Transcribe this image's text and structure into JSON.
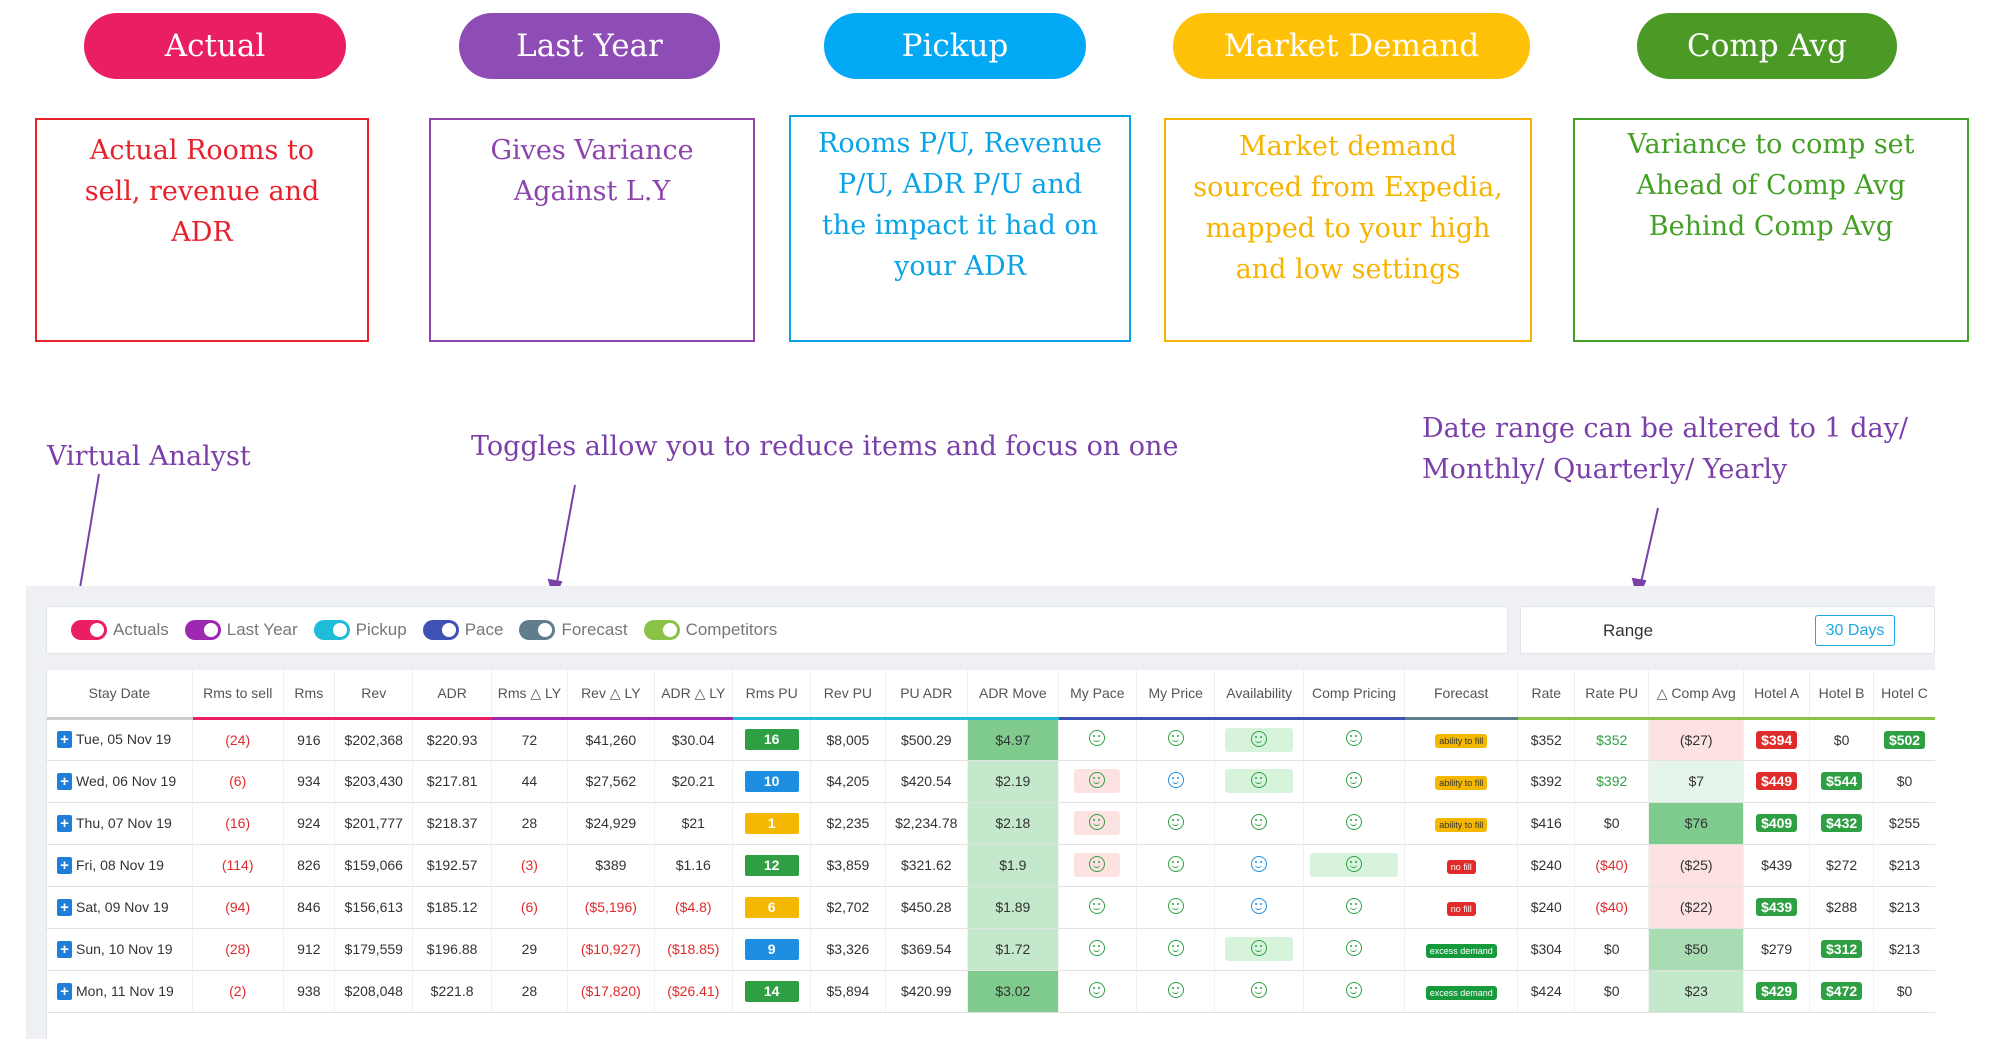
{
  "legend": [
    {
      "label": "Actual",
      "color": "#e91e63"
    },
    {
      "label": "Last Year",
      "color": "#8e44ad"
    },
    {
      "label": "Pickup",
      "color": "#03a9f4"
    },
    {
      "label": "Market Demand",
      "color": "#ffc107"
    },
    {
      "label": "Comp Avg",
      "color": "#43a024"
    }
  ],
  "boxes": [
    {
      "text": "Actual Rooms to\nsell, revenue and\nADR",
      "color": "#e8202c"
    },
    {
      "text": "Gives Variance\nAgainst L.Y",
      "color": "#8e44ad"
    },
    {
      "text": "Rooms P/U, Revenue\nP/U, ADR P/U and\nthe impact it had on\nyour ADR",
      "color": "#0aa3e5"
    },
    {
      "text": "Market demand\nsourced from Expedia,\nmapped to your high\nand low settings",
      "color": "#f6b400"
    },
    {
      "text": "Variance to comp set\nAhead of Comp Avg\nBehind Comp Avg",
      "color": "#43a024"
    }
  ],
  "notes": {
    "virtual_analyst": "Virtual Analyst",
    "toggles": "Toggles allow you to reduce items and focus on one",
    "date_range": "Date range can be altered to 1 day/\nMonthly/ Quarterly/ Yearly"
  },
  "toggles": [
    {
      "label": "Actuals",
      "color": "#e91e63"
    },
    {
      "label": "Last Year",
      "color": "#9c27b0"
    },
    {
      "label": "Pickup",
      "color": "#1ebcd8"
    },
    {
      "label": "Pace",
      "color": "#3f51b5"
    },
    {
      "label": "Forecast",
      "color": "#607d8b"
    },
    {
      "label": "Competitors",
      "color": "#8bc34a"
    }
  ],
  "range": {
    "label": "Range",
    "button": "30 Days"
  },
  "columns": [
    "Stay Date",
    "Rms to sell",
    "Rms",
    "Rev",
    "ADR",
    "Rms △ LY",
    "Rev △ LY",
    "ADR △ LY",
    "Rms PU",
    "Rev PU",
    "PU ADR",
    "ADR Move",
    "My Pace",
    "My Price",
    "Availability",
    "Comp Pricing",
    "Forecast",
    "Rate",
    "Rate PU",
    "△ Comp Avg",
    "Hotel A",
    "Hotel B",
    "Hotel C"
  ],
  "rows": [
    {
      "date": "Tue, 05 Nov 19",
      "to_sell": "(24)",
      "rms": "916",
      "rev": "$202,368",
      "adr": "$220.93",
      "rms_ly": "72",
      "rev_ly": "$41,260",
      "adr_ly": "$30.04",
      "rms_pu": "16",
      "rev_pu": "$8,005",
      "pu_adr": "$500.29",
      "adr_move": "$4.97",
      "forecast": "ability to fill",
      "rate": "$352",
      "rate_pu": "$352",
      "comp": "($27)",
      "a": "$394",
      "b": "$0",
      "c": "$502"
    },
    {
      "date": "Wed, 06 Nov 19",
      "to_sell": "(6)",
      "rms": "934",
      "rev": "$203,430",
      "adr": "$217.81",
      "rms_ly": "44",
      "rev_ly": "$27,562",
      "adr_ly": "$20.21",
      "rms_pu": "10",
      "rev_pu": "$4,205",
      "pu_adr": "$420.54",
      "adr_move": "$2.19",
      "forecast": "ability to fill",
      "rate": "$392",
      "rate_pu": "$392",
      "comp": "$7",
      "a": "$449",
      "b": "$544",
      "c": "$0"
    },
    {
      "date": "Thu, 07 Nov 19",
      "to_sell": "(16)",
      "rms": "924",
      "rev": "$201,777",
      "adr": "$218.37",
      "rms_ly": "28",
      "rev_ly": "$24,929",
      "adr_ly": "$21",
      "rms_pu": "1",
      "rev_pu": "$2,235",
      "pu_adr": "$2,234.78",
      "adr_move": "$2.18",
      "forecast": "ability to fill",
      "rate": "$416",
      "rate_pu": "$0",
      "comp": "$76",
      "a": "$409",
      "b": "$432",
      "c": "$255"
    },
    {
      "date": "Fri, 08 Nov 19",
      "to_sell": "(114)",
      "rms": "826",
      "rev": "$159,066",
      "adr": "$192.57",
      "rms_ly": "(3)",
      "rev_ly": "$389",
      "adr_ly": "$1.16",
      "rms_pu": "12",
      "rev_pu": "$3,859",
      "pu_adr": "$321.62",
      "adr_move": "$1.9",
      "forecast": "no fill",
      "rate": "$240",
      "rate_pu": "($40)",
      "comp": "($25)",
      "a": "$439",
      "b": "$272",
      "c": "$213"
    },
    {
      "date": "Sat, 09 Nov 19",
      "to_sell": "(94)",
      "rms": "846",
      "rev": "$156,613",
      "adr": "$185.12",
      "rms_ly": "(6)",
      "rev_ly": "($5,196)",
      "adr_ly": "($4.8)",
      "rms_pu": "6",
      "rev_pu": "$2,702",
      "pu_adr": "$450.28",
      "adr_move": "$1.89",
      "forecast": "no fill",
      "rate": "$240",
      "rate_pu": "($40)",
      "comp": "($22)",
      "a": "$439",
      "b": "$288",
      "c": "$213"
    },
    {
      "date": "Sun, 10 Nov 19",
      "to_sell": "(28)",
      "rms": "912",
      "rev": "$179,559",
      "adr": "$196.88",
      "rms_ly": "29",
      "rev_ly": "($10,927)",
      "adr_ly": "($18.85)",
      "rms_pu": "9",
      "rev_pu": "$3,326",
      "pu_adr": "$369.54",
      "adr_move": "$1.72",
      "forecast": "excess demand",
      "rate": "$304",
      "rate_pu": "$0",
      "comp": "$50",
      "a": "$279",
      "b": "$312",
      "c": "$213"
    },
    {
      "date": "Mon, 11 Nov 19",
      "to_sell": "(2)",
      "rms": "938",
      "rev": "$208,048",
      "adr": "$221.8",
      "rms_ly": "28",
      "rev_ly": "($17,820)",
      "adr_ly": "($26.41)",
      "rms_pu": "14",
      "rev_pu": "$5,894",
      "pu_adr": "$420.99",
      "adr_move": "$3.02",
      "forecast": "excess demand",
      "rate": "$424",
      "rate_pu": "$0",
      "comp": "$23",
      "a": "$429",
      "b": "$472",
      "c": "$0"
    }
  ]
}
